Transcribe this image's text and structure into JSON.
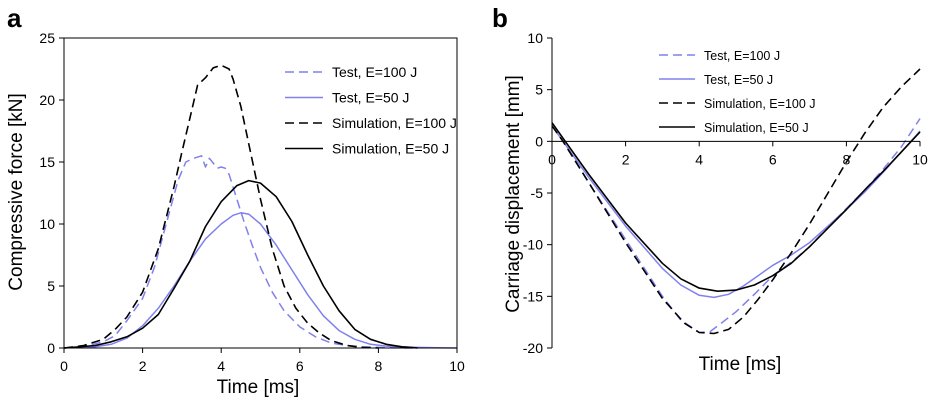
{
  "chart_data": [
    {
      "type": "line",
      "panel_label": "a",
      "xlabel": "Time [ms]",
      "ylabel": "Compressive force [kN]",
      "xlim": [
        0,
        10
      ],
      "ylim": [
        0,
        25
      ],
      "x_ticks": [
        "0",
        "2",
        "4",
        "6",
        "8",
        "10"
      ],
      "y_ticks": [
        "0",
        "5",
        "10",
        "15",
        "20",
        "25"
      ],
      "grid": false,
      "legend_position": "top-right",
      "series": [
        {
          "name": "Test, E=100 J",
          "color": "#8080ee",
          "style": "dashed",
          "x": [
            0,
            0.5,
            1.0,
            1.3,
            1.6,
            2.0,
            2.3,
            2.6,
            2.9,
            3.1,
            3.3,
            3.5,
            3.6,
            3.7,
            3.9,
            4.0,
            4.1,
            4.2,
            4.4,
            4.6,
            4.8,
            5.0,
            5.3,
            5.6,
            6.0,
            6.4,
            6.8,
            7.2,
            7.6,
            8.0,
            8.6,
            9.0
          ],
          "y": [
            0,
            0.1,
            0.5,
            1.0,
            2.2,
            4.0,
            6.5,
            10.0,
            13.5,
            15.0,
            15.3,
            15.5,
            14.6,
            15.3,
            14.5,
            14.6,
            14.5,
            14.0,
            12.0,
            10.0,
            8.2,
            6.5,
            4.5,
            3.0,
            1.7,
            0.9,
            0.4,
            0.2,
            0.1,
            0.05,
            0,
            0
          ]
        },
        {
          "name": "Test, E=50 J",
          "color": "#8080ee",
          "style": "solid",
          "x": [
            0,
            0.8,
            1.2,
            1.6,
            2.0,
            2.4,
            2.8,
            3.2,
            3.6,
            4.0,
            4.3,
            4.5,
            4.7,
            5.0,
            5.4,
            5.8,
            6.2,
            6.6,
            7.0,
            7.4,
            7.8,
            8.2,
            8.6,
            9.0,
            9.5,
            10.0
          ],
          "y": [
            0,
            0.1,
            0.3,
            0.8,
            1.8,
            3.2,
            5.0,
            7.0,
            8.8,
            10.0,
            10.7,
            10.9,
            10.8,
            10.0,
            8.3,
            6.3,
            4.3,
            2.6,
            1.4,
            0.7,
            0.3,
            0.15,
            0.1,
            0.05,
            0.02,
            0
          ]
        },
        {
          "name": "Simulation, E=100 J",
          "color": "#000000",
          "style": "dashed",
          "x": [
            0,
            0.5,
            1.0,
            1.3,
            1.6,
            2.0,
            2.4,
            2.8,
            3.0,
            3.2,
            3.4,
            3.6,
            3.8,
            4.0,
            4.2,
            4.3,
            4.5,
            4.8,
            5.0,
            5.3,
            5.6,
            5.9,
            6.2,
            6.5,
            6.8,
            7.2,
            7.6,
            8.0
          ],
          "y": [
            0,
            0.2,
            0.7,
            1.5,
            2.5,
            4.5,
            8.0,
            13.0,
            15.8,
            18.5,
            21.2,
            21.8,
            22.6,
            22.8,
            22.5,
            21.7,
            19.5,
            15.0,
            12.0,
            8.0,
            5.0,
            3.2,
            2.0,
            1.2,
            0.6,
            0.2,
            0.05,
            0
          ]
        },
        {
          "name": "Simulation, E=50 J",
          "color": "#000000",
          "style": "solid",
          "x": [
            0,
            0.8,
            1.2,
            1.6,
            2.0,
            2.4,
            2.8,
            3.2,
            3.6,
            4.0,
            4.4,
            4.7,
            5.0,
            5.4,
            5.8,
            6.2,
            6.6,
            7.0,
            7.4,
            7.8,
            8.2,
            8.6,
            9.0
          ],
          "y": [
            0,
            0.2,
            0.5,
            0.9,
            1.6,
            2.7,
            4.8,
            7.0,
            9.8,
            11.8,
            13.1,
            13.5,
            13.3,
            12.2,
            10.2,
            7.5,
            5.0,
            3.0,
            1.5,
            0.7,
            0.3,
            0.1,
            0
          ]
        }
      ]
    },
    {
      "type": "line",
      "panel_label": "b",
      "xlabel": "Time [ms]",
      "ylabel": "Carriage displacement [mm]",
      "xlim": [
        0,
        10
      ],
      "ylim": [
        -20,
        10
      ],
      "x_ticks": [
        "0",
        "2",
        "4",
        "6",
        "8",
        "10"
      ],
      "y_ticks": [
        "-20",
        "-15",
        "-10",
        "-5",
        "0",
        "5",
        "10"
      ],
      "grid": false,
      "legend_position": "top-right",
      "series": [
        {
          "name": "Test, E=100 J",
          "color": "#8080ee",
          "style": "dashed",
          "x": [
            0,
            0.3,
            1.0,
            2.0,
            3.0,
            3.5,
            4.0,
            4.3,
            4.6,
            5.0,
            5.5,
            6.0,
            6.5,
            7.0,
            7.5,
            8.0,
            8.5,
            9.0,
            9.5,
            10.0
          ],
          "y": [
            1.5,
            0,
            -4.0,
            -9.5,
            -15.0,
            -17.3,
            -18.5,
            -18.4,
            -17.6,
            -16.5,
            -14.8,
            -13.0,
            -11.7,
            -10.2,
            -8.3,
            -6.5,
            -4.7,
            -2.7,
            -0.5,
            2.2
          ]
        },
        {
          "name": "Test, E=50 J",
          "color": "#8080ee",
          "style": "solid",
          "x": [
            0,
            0.3,
            1.0,
            2.0,
            3.0,
            3.5,
            4.0,
            4.4,
            4.8,
            5.2,
            5.6,
            6.0,
            6.5,
            7.0,
            7.5,
            8.0,
            8.5,
            9.0,
            9.5,
            10.0
          ],
          "y": [
            1.5,
            0,
            -3.5,
            -8.2,
            -12.3,
            -13.9,
            -14.9,
            -15.1,
            -14.8,
            -14.0,
            -13.0,
            -12.0,
            -11.0,
            -9.8,
            -8.2,
            -6.6,
            -4.9,
            -3.0,
            -1.0,
            1.0
          ]
        },
        {
          "name": "Simulation, E=100 J",
          "color": "#000000",
          "style": "dashed",
          "x": [
            0,
            0.3,
            1.0,
            2.0,
            3.0,
            3.6,
            4.0,
            4.4,
            4.8,
            5.2,
            5.6,
            6.0,
            6.5,
            7.0,
            7.5,
            8.0,
            8.5,
            9.0,
            9.5,
            10.0
          ],
          "y": [
            1.5,
            0,
            -4.0,
            -9.8,
            -15.2,
            -17.6,
            -18.5,
            -18.6,
            -18.2,
            -17.0,
            -15.3,
            -13.4,
            -10.8,
            -8.0,
            -5.0,
            -2.0,
            0.8,
            3.3,
            5.3,
            7.0
          ]
        },
        {
          "name": "Simulation, E=50 J",
          "color": "#000000",
          "style": "solid",
          "x": [
            0,
            0.3,
            1.0,
            2.0,
            3.0,
            3.5,
            4.0,
            4.5,
            5.0,
            5.5,
            6.0,
            6.5,
            7.0,
            7.5,
            8.0,
            8.5,
            9.0,
            9.5,
            10.0
          ],
          "y": [
            1.8,
            0.3,
            -3.2,
            -7.9,
            -11.8,
            -13.3,
            -14.2,
            -14.5,
            -14.4,
            -13.9,
            -13.0,
            -11.8,
            -10.2,
            -8.4,
            -6.6,
            -4.7,
            -2.9,
            -1.0,
            0.9
          ]
        }
      ]
    }
  ]
}
